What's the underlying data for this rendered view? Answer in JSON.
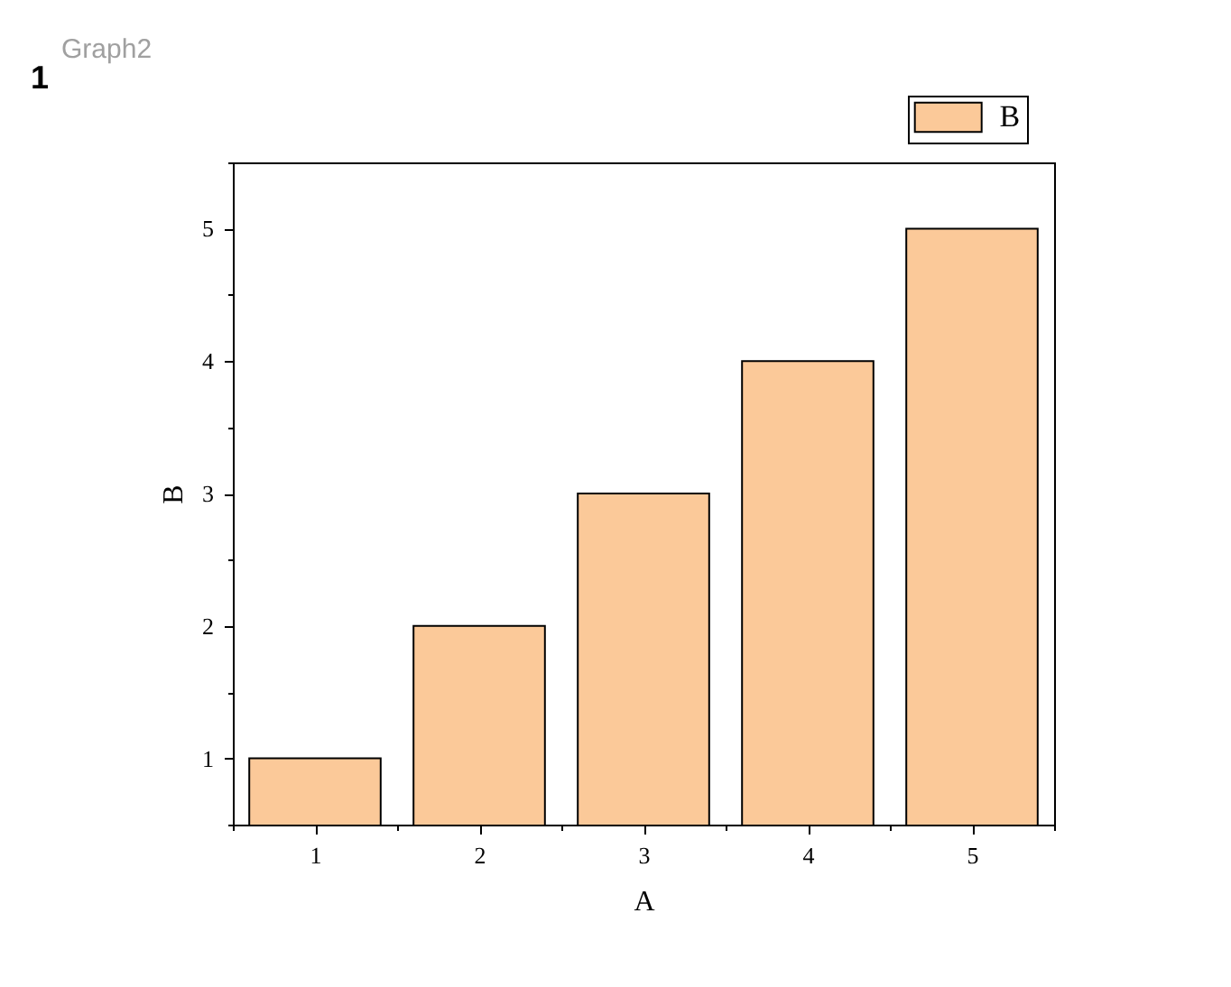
{
  "chart_data": {
    "type": "bar",
    "title": "Graph2",
    "annotations": [
      "1"
    ],
    "xlabel": "A",
    "ylabel": "B",
    "x": [
      1,
      2,
      3,
      4,
      5
    ],
    "series": [
      {
        "name": "B",
        "color": "#fbc999",
        "values": [
          1,
          2,
          3,
          4,
          5
        ]
      }
    ],
    "xlim": [
      0.5,
      5.5
    ],
    "xticks": [
      {
        "value": 0.5,
        "label": null
      },
      1,
      {
        "value": 1.5,
        "label": null
      },
      2,
      {
        "value": 2.5,
        "label": null
      },
      3,
      {
        "value": 3.5,
        "label": null
      },
      4,
      {
        "value": 4.5,
        "label": null
      },
      5,
      {
        "value": 5.5,
        "label": null
      }
    ],
    "ylim": [
      0.5,
      5.5
    ],
    "yticks": [
      {
        "value": 0.5,
        "label": null
      },
      1,
      {
        "value": 1.5,
        "label": null
      },
      2,
      {
        "value": 2.5,
        "label": null
      },
      3,
      {
        "value": 3.5,
        "label": null
      },
      4,
      {
        "value": 4.5,
        "label": null
      },
      5,
      {
        "value": 5.5,
        "label": null
      }
    ],
    "legend": "top right"
  }
}
